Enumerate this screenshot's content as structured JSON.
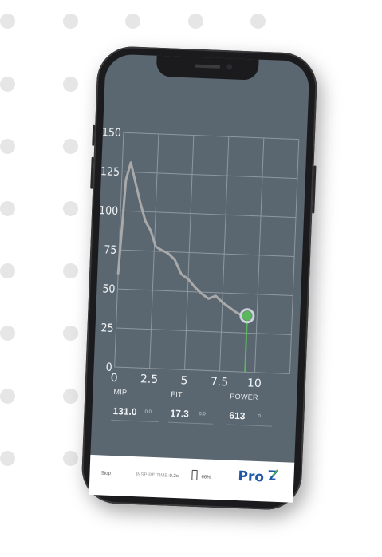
{
  "chart_data": {
    "type": "line",
    "x_ticks": [
      "0",
      "2.5",
      "5",
      "7.5",
      "10"
    ],
    "y_ticks": [
      "0",
      "25",
      "50",
      "75",
      "100",
      "125",
      "150"
    ],
    "xlim": [
      0,
      12.5
    ],
    "ylim": [
      0,
      150
    ],
    "grid": true,
    "series": [
      {
        "x": [
          0.0,
          0.3,
          0.6,
          1.0,
          1.4,
          1.8,
          2.2,
          2.6,
          3.0,
          3.5,
          4.0,
          4.5,
          5.0,
          5.5,
          6.0,
          6.5,
          7.0,
          7.5,
          8.0,
          8.5,
          9.0,
          9.3
        ],
        "y": [
          60,
          120,
          131,
          118,
          105,
          94,
          88,
          78,
          76,
          74,
          70,
          61,
          58,
          53,
          49,
          46,
          48,
          44,
          41,
          38,
          36,
          36
        ]
      }
    ],
    "marker": {
      "x": 9.3,
      "y": 36,
      "color": "#5cb85c"
    }
  },
  "metrics": [
    {
      "label": "MIP",
      "value": "131.0",
      "sub": "0.0"
    },
    {
      "label": "FIT",
      "value": "17.3",
      "sub": "0.0"
    },
    {
      "label": "POWER",
      "value": "613",
      "sub": "0"
    }
  ],
  "bottom_bar": {
    "stop_label": "Stop",
    "inspire_label": "INSPIRE TIME:",
    "inspire_value": "9.2s",
    "battery_value": "66%",
    "logo_text": "Pro"
  },
  "colors": {
    "screen_bg": "#5a6670",
    "grid": "#8e989f",
    "line": "#a9a9a9",
    "marker": "#5cb85c",
    "logo": "#1f5aa6"
  }
}
